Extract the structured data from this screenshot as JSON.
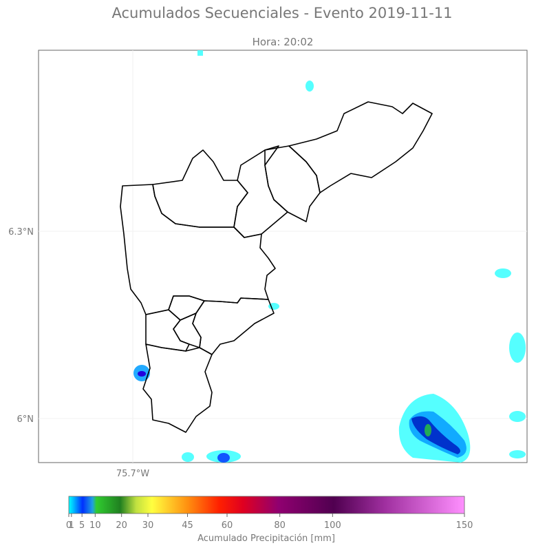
{
  "map": {
    "title": "Acumulados Secuenciales - Evento 2019-11-11",
    "subtitle": "Hora: 20:02",
    "lat_labels": [
      "6.3°N",
      "6°N"
    ],
    "lon_labels": [
      "75.7°W"
    ],
    "colorbar": {
      "label": "Acumulado Precipitación [mm]",
      "lim": [
        0,
        150
      ],
      "ticks": [
        0,
        1,
        5,
        10,
        20,
        30,
        45,
        60,
        80,
        100,
        150
      ]
    }
  }
}
